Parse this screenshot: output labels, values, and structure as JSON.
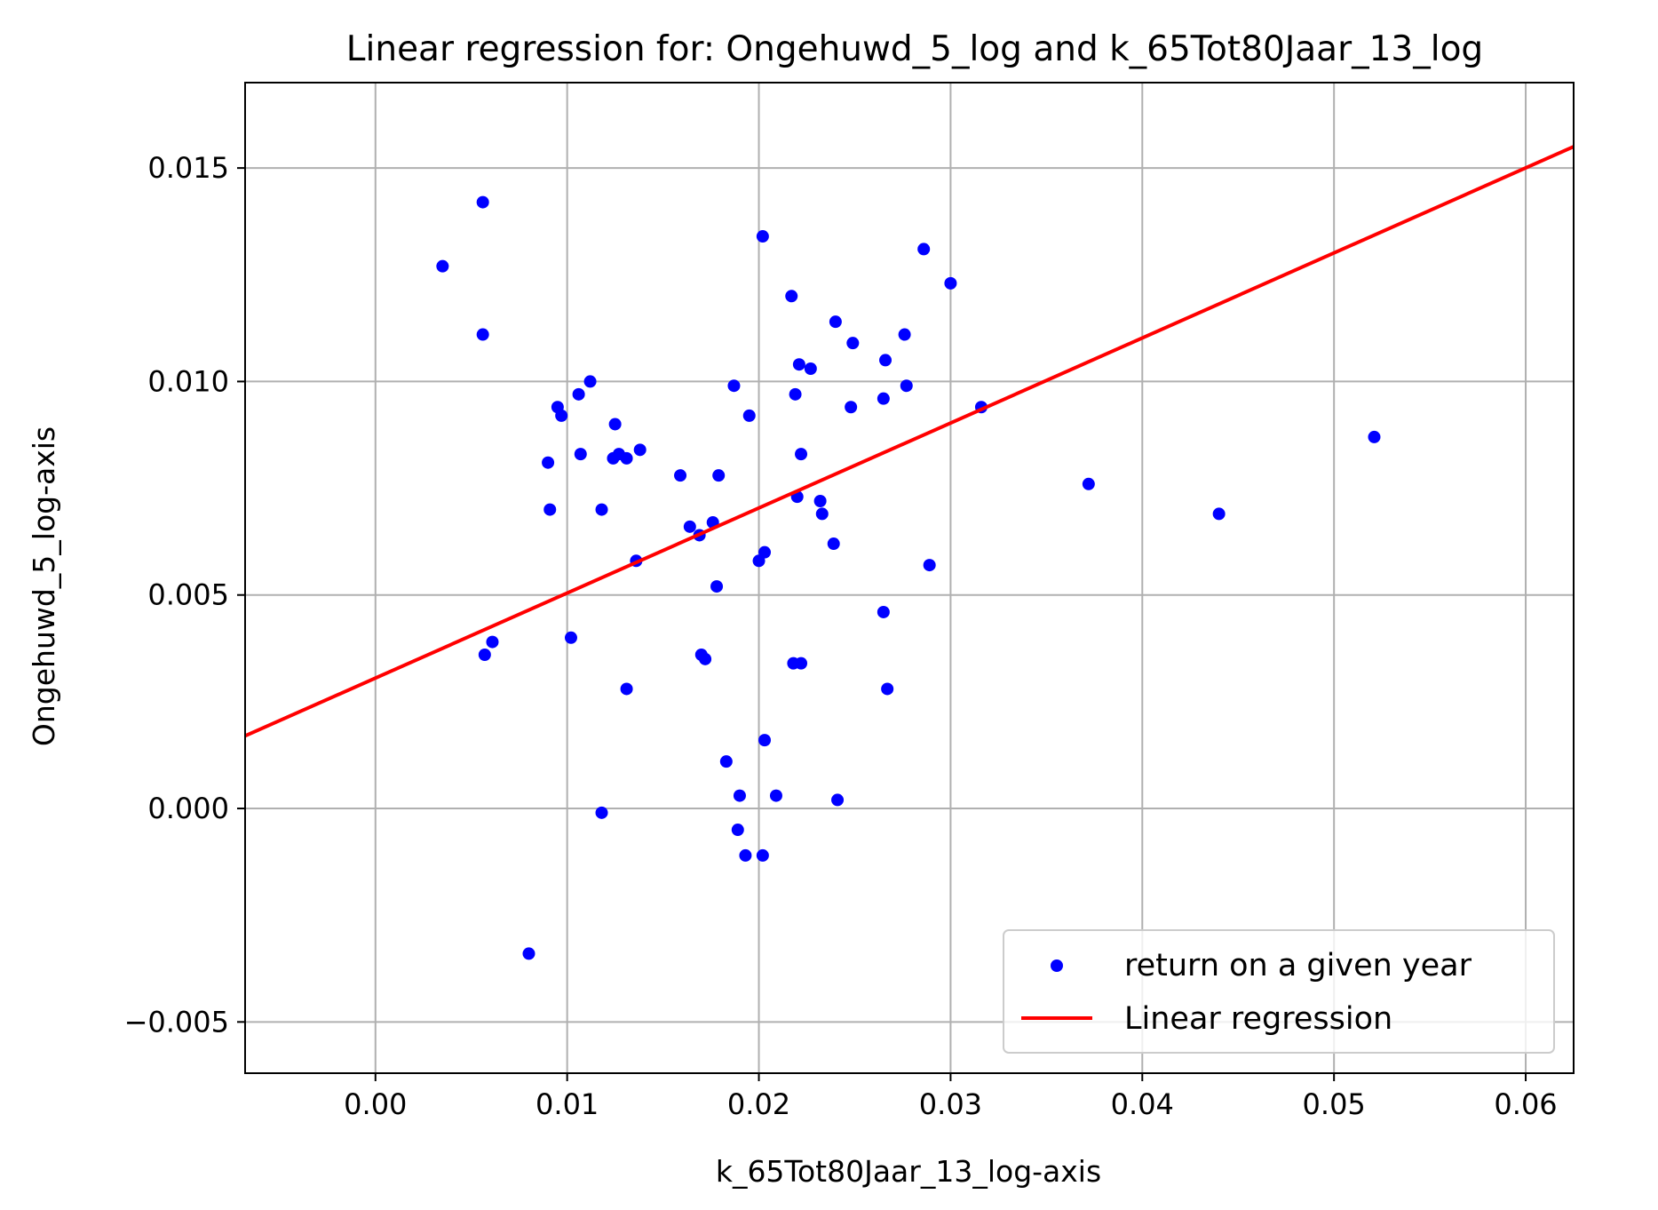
{
  "chart_data": {
    "type": "scatter",
    "title": "Linear regression for: Ongehuwd_5_log and k_65Tot80Jaar_13_log",
    "xlabel": "k_65Tot80Jaar_13_log-axis",
    "ylabel": "Ongehuwd_5_log-axis",
    "xlim": [
      -0.0068,
      0.0625
    ],
    "ylim": [
      -0.0062,
      0.017
    ],
    "xticks": [
      0.0,
      0.01,
      0.02,
      0.03,
      0.04,
      0.05,
      0.06
    ],
    "xtick_labels": [
      "0.00",
      "0.01",
      "0.02",
      "0.03",
      "0.04",
      "0.05",
      "0.06"
    ],
    "yticks": [
      -0.005,
      0.0,
      0.005,
      0.01,
      0.015
    ],
    "ytick_labels": [
      "−0.005",
      "0.000",
      "0.005",
      "0.010",
      "0.015"
    ],
    "grid": true,
    "legend_position": "lower-right",
    "series": [
      {
        "name": "return on a given year",
        "kind": "scatter",
        "color": "#0000ff",
        "points": [
          [
            0.0035,
            0.0127
          ],
          [
            0.0056,
            0.0142
          ],
          [
            0.0056,
            0.0111
          ],
          [
            0.0057,
            0.0036
          ],
          [
            0.0061,
            0.0039
          ],
          [
            0.008,
            -0.0034
          ],
          [
            0.009,
            0.0081
          ],
          [
            0.0091,
            0.007
          ],
          [
            0.0095,
            0.0094
          ],
          [
            0.0097,
            0.0092
          ],
          [
            0.0102,
            0.004
          ],
          [
            0.0106,
            0.0097
          ],
          [
            0.0107,
            0.0083
          ],
          [
            0.0112,
            0.01
          ],
          [
            0.0118,
            -0.0001
          ],
          [
            0.0118,
            0.007
          ],
          [
            0.0124,
            0.0082
          ],
          [
            0.0125,
            0.009
          ],
          [
            0.0127,
            0.0083
          ],
          [
            0.0131,
            0.0082
          ],
          [
            0.0131,
            0.0028
          ],
          [
            0.0136,
            0.0058
          ],
          [
            0.0138,
            0.0084
          ],
          [
            0.0159,
            0.0078
          ],
          [
            0.0164,
            0.0066
          ],
          [
            0.0169,
            0.0064
          ],
          [
            0.017,
            0.0036
          ],
          [
            0.0172,
            0.0035
          ],
          [
            0.0176,
            0.0067
          ],
          [
            0.0178,
            0.0052
          ],
          [
            0.0179,
            0.0078
          ],
          [
            0.0183,
            0.0011
          ],
          [
            0.0187,
            0.0099
          ],
          [
            0.0189,
            -0.0005
          ],
          [
            0.019,
            0.0003
          ],
          [
            0.0193,
            -0.0011
          ],
          [
            0.0195,
            0.0092
          ],
          [
            0.02,
            0.0058
          ],
          [
            0.0202,
            0.0134
          ],
          [
            0.0202,
            -0.0011
          ],
          [
            0.0203,
            0.006
          ],
          [
            0.0203,
            0.0016
          ],
          [
            0.0209,
            0.0003
          ],
          [
            0.0217,
            0.012
          ],
          [
            0.0218,
            0.0034
          ],
          [
            0.0219,
            0.0097
          ],
          [
            0.022,
            0.0073
          ],
          [
            0.0221,
            0.0104
          ],
          [
            0.0222,
            0.0034
          ],
          [
            0.0222,
            0.0083
          ],
          [
            0.0227,
            0.0103
          ],
          [
            0.0232,
            0.0072
          ],
          [
            0.0233,
            0.0069
          ],
          [
            0.0239,
            0.0062
          ],
          [
            0.024,
            0.0114
          ],
          [
            0.0241,
            0.0002
          ],
          [
            0.0248,
            0.0094
          ],
          [
            0.0249,
            0.0109
          ],
          [
            0.0265,
            0.0096
          ],
          [
            0.0265,
            0.0046
          ],
          [
            0.0266,
            0.0105
          ],
          [
            0.0267,
            0.0028
          ],
          [
            0.0276,
            0.0111
          ],
          [
            0.0277,
            0.0099
          ],
          [
            0.0286,
            0.0131
          ],
          [
            0.0289,
            0.0057
          ],
          [
            0.03,
            0.0123
          ],
          [
            0.0316,
            0.0094
          ],
          [
            0.0372,
            0.0076
          ],
          [
            0.044,
            0.0069
          ],
          [
            0.0521,
            0.0087
          ]
        ]
      },
      {
        "name": "Linear regression",
        "kind": "line",
        "color": "#ff0000",
        "points": [
          [
            -0.0068,
            0.0017
          ],
          [
            0.0625,
            0.0155
          ]
        ]
      }
    ]
  }
}
